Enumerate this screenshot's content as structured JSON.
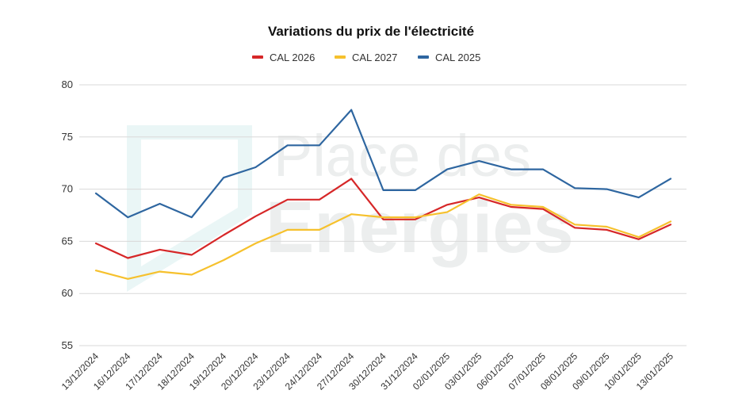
{
  "chart_data": {
    "type": "line",
    "title": "Variations du prix de l'électricité",
    "xlabel": "",
    "ylabel": "",
    "ylim": [
      55,
      80
    ],
    "yticks": [
      55,
      60,
      65,
      70,
      75,
      80
    ],
    "grid": true,
    "legend_position": "top",
    "categories": [
      "13/12/2024",
      "16/12/2024",
      "17/12/2024",
      "18/12/2024",
      "19/12/2024",
      "20/12/2024",
      "23/12/2024",
      "24/12/2024",
      "27/12/2024",
      "30/12/2024",
      "31/12/2024",
      "02/01/2025",
      "03/01/2025",
      "06/01/2025",
      "07/01/2025",
      "08/01/2025",
      "09/01/2025",
      "10/01/2025",
      "13/01/2025"
    ],
    "series": [
      {
        "name": "CAL 2026",
        "color": "#d62728",
        "values": [
          64.8,
          63.4,
          64.2,
          63.7,
          65.6,
          67.4,
          69.0,
          69.0,
          71.0,
          67.1,
          67.1,
          68.5,
          69.2,
          68.3,
          68.1,
          66.3,
          66.1,
          65.2,
          66.6
        ]
      },
      {
        "name": "CAL 2027",
        "color": "#f6c12d",
        "values": [
          62.2,
          61.4,
          62.1,
          61.8,
          63.2,
          64.8,
          66.1,
          66.1,
          67.6,
          67.3,
          67.3,
          67.8,
          69.5,
          68.5,
          68.3,
          66.6,
          66.4,
          65.4,
          66.9
        ]
      },
      {
        "name": "CAL 2025",
        "color": "#2e66a0",
        "values": [
          69.6,
          67.3,
          68.6,
          67.3,
          71.1,
          72.1,
          74.2,
          74.2,
          77.6,
          69.9,
          69.9,
          71.9,
          72.7,
          71.9,
          71.9,
          70.1,
          70.0,
          69.2,
          71.0
        ]
      }
    ]
  },
  "watermark": {
    "line1": "Place des",
    "line2": "Energies",
    "color": "#e6f4f4"
  }
}
